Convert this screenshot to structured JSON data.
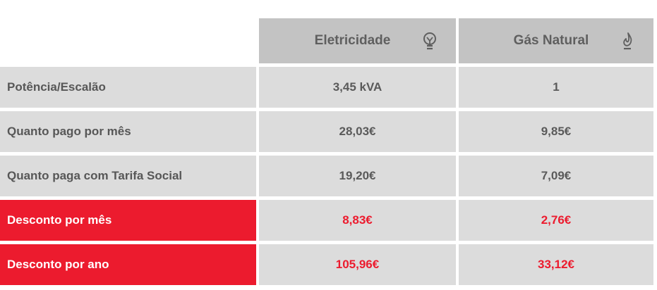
{
  "header": {
    "col1": {
      "label": "Eletricidade",
      "icon": "lightbulb-icon"
    },
    "col2": {
      "label": "Gás Natural",
      "icon": "flame-icon"
    }
  },
  "rows": [
    {
      "label": "Potência/Escalão",
      "electricity": "3,45 kVA",
      "gas": "1",
      "highlight": false
    },
    {
      "label": "Quanto pago por mês",
      "electricity": "28,03€",
      "gas": "9,85€",
      "highlight": false
    },
    {
      "label": "Quanto paga com Tarifa Social",
      "electricity": "19,20€",
      "gas": "7,09€",
      "highlight": false
    },
    {
      "label": "Desconto por mês",
      "electricity": "8,83€",
      "gas": "2,76€",
      "highlight": true
    },
    {
      "label": "Desconto por ano",
      "electricity": "105,96€",
      "gas": "33,12€",
      "highlight": true
    }
  ],
  "colors": {
    "header_bg": "#c3c3c3",
    "cell_bg": "#dcdcdc",
    "accent_red": "#ec1b2e",
    "text_gray": "#575757"
  }
}
